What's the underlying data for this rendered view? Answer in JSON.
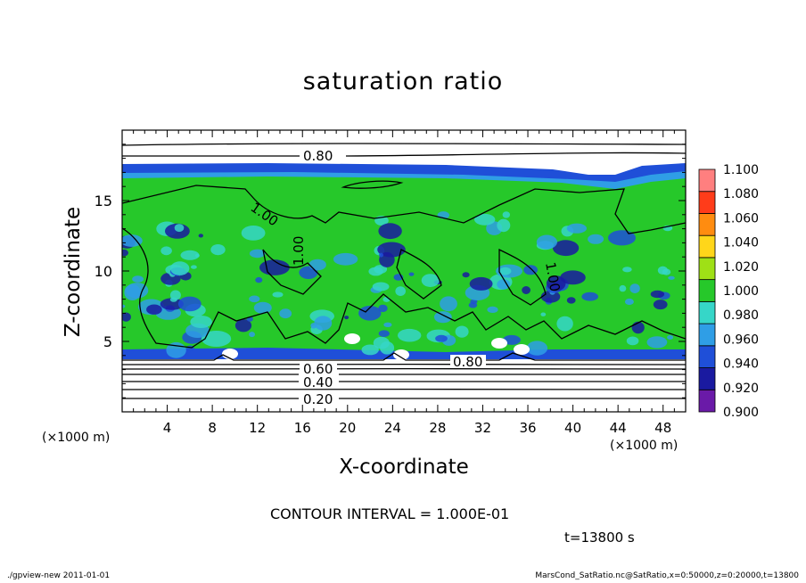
{
  "chart_data": {
    "type": "heatmap",
    "title": "saturation ratio",
    "xlabel": "X-coordinate",
    "ylabel": "Z-coordinate",
    "x_unit": "(×1000 m)",
    "x_range": [
      0,
      50
    ],
    "y_range": [
      0,
      20
    ],
    "x_ticks": [
      4,
      8,
      12,
      16,
      20,
      24,
      28,
      32,
      36,
      40,
      44,
      48
    ],
    "y_ticks": [
      5,
      10,
      15
    ],
    "colorbar": {
      "levels": [
        0.9,
        0.92,
        0.94,
        0.96,
        0.98,
        1.0,
        1.02,
        1.04,
        1.06,
        1.08,
        1.1
      ],
      "labels": [
        "0.900",
        "0.920",
        "0.940",
        "0.960",
        "0.980",
        "1.000",
        "1.020",
        "1.040",
        "1.060",
        "1.080",
        "1.100"
      ],
      "colors": [
        "#6a1aa8",
        "#1a1aa0",
        "#1f4fd8",
        "#2f9ee6",
        "#36d6c8",
        "#26c82a",
        "#9fe016",
        "#ffd61a",
        "#ff8c10",
        "#ff3c1a",
        "#ff7f7f"
      ]
    },
    "contour_labels": [
      "0.80",
      "1.00",
      "1.00",
      "1.00",
      "0.60",
      "0.40",
      "0.20",
      "0.80"
    ],
    "contour_interval": "CONTOUR INTERVAL = 1.000E-01",
    "dominant_value": 1.0,
    "grid": false
  },
  "annotations": {
    "time": "t=13800 s",
    "footer_left": "./gpview-new  2011-01-01",
    "footer_right": "MarsCond_SatRatio.nc@SatRatio,x=0:50000,z=0:20000,t=13800"
  }
}
